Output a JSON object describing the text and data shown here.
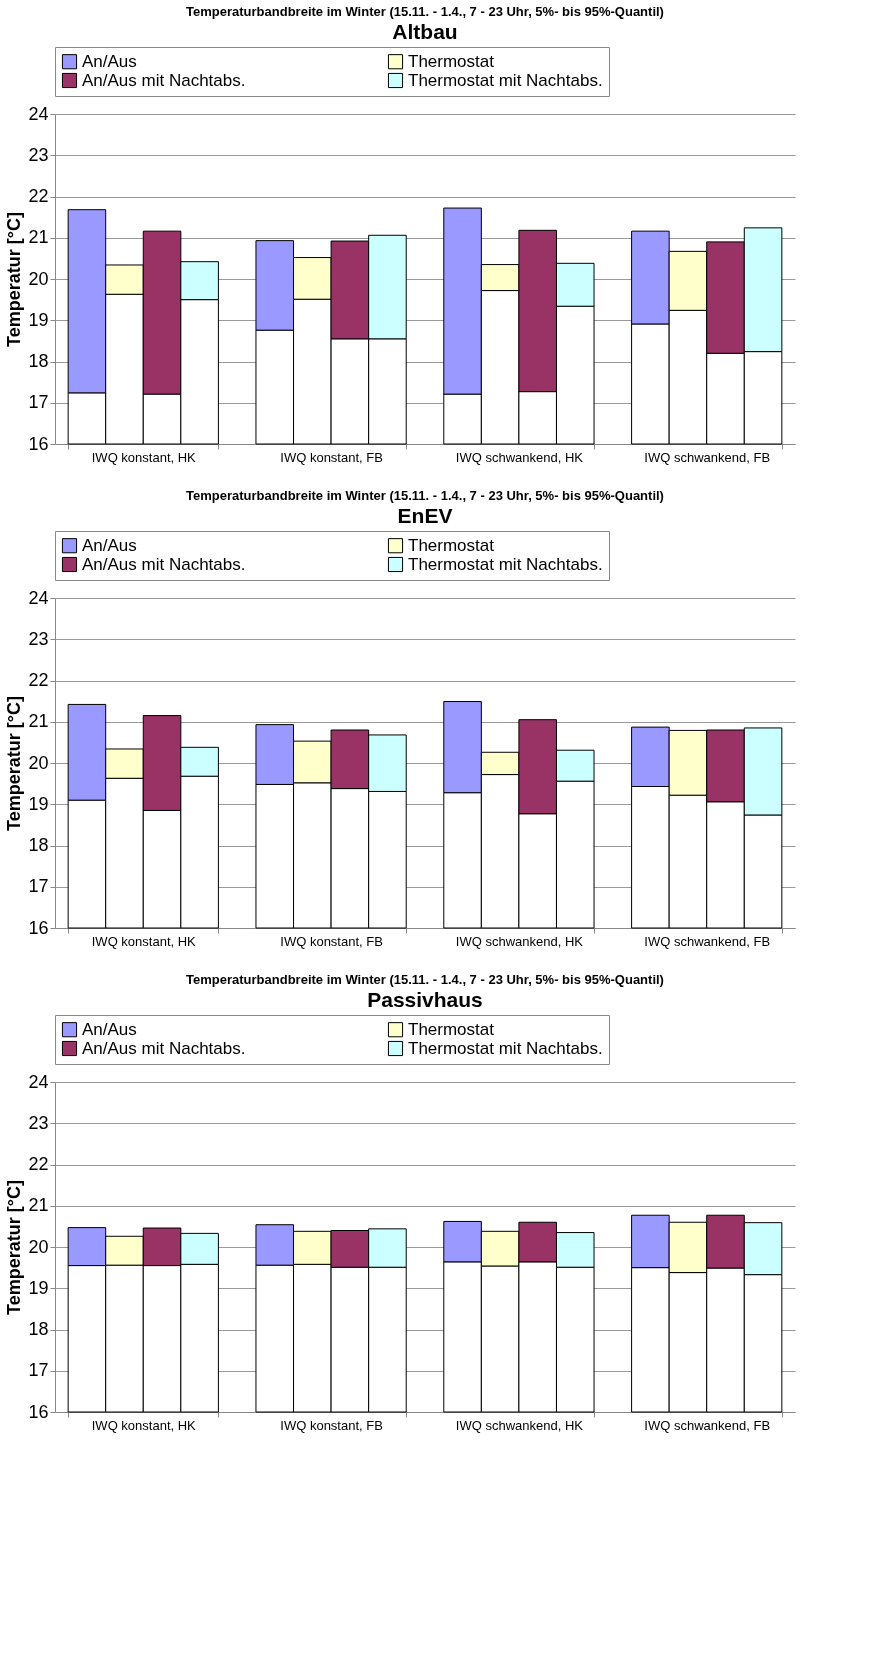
{
  "chart_data": [
    {
      "type": "bar",
      "title": "Temperaturbandbreite im Winter (15.11. - 1.4., 7 - 23 Uhr, 5%- bis 95%-Quantil)",
      "subtitle": "Altbau",
      "ylabel": "Temperatur [°C]",
      "categories": [
        "IWQ konstant, HK",
        "IWQ konstant, FB",
        "IWQ schwankend, HK",
        "IWQ schwankend, FB"
      ],
      "ylim": [
        16,
        24
      ],
      "yticks": [
        16,
        17,
        18,
        19,
        20,
        21,
        22,
        23,
        24
      ],
      "grid": "y",
      "legend": "top",
      "series": [
        {
          "color": "#ffffff",
          "base": [
            16,
            16,
            16,
            16
          ],
          "values": [
            1.24,
            2.76,
            1.21,
            2.91
          ]
        },
        {
          "name": "An/Aus",
          "color": "#9999ff",
          "base": [
            17.24,
            18.76,
            17.21,
            18.91
          ],
          "values": [
            4.44,
            2.17,
            4.51,
            2.25
          ]
        },
        {
          "color": "#ffffff",
          "base": [
            16,
            16,
            16,
            16
          ],
          "values": [
            3.63,
            3.51,
            3.72,
            3.24
          ]
        },
        {
          "name": "Thermostat",
          "color": "#ffffcc",
          "base": [
            19.63,
            19.51,
            19.72,
            19.24
          ],
          "values": [
            0.71,
            1.01,
            0.63,
            1.43
          ]
        },
        {
          "color": "#ffffff",
          "base": [
            16,
            16,
            16,
            16
          ],
          "values": [
            1.21,
            2.55,
            1.27,
            2.2
          ]
        },
        {
          "name": "An/Aus mit Nachtabs.",
          "color": "#993366",
          "base": [
            17.21,
            18.55,
            17.27,
            18.2
          ],
          "values": [
            3.95,
            2.37,
            3.91,
            2.7
          ]
        },
        {
          "color": "#ffffff",
          "base": [
            16,
            16,
            16,
            16
          ],
          "values": [
            3.5,
            2.55,
            3.34,
            2.24
          ]
        },
        {
          "name": "Thermostat mit Nachtabs.",
          "color": "#ccffff",
          "base": [
            19.5,
            18.55,
            19.34,
            18.24
          ],
          "values": [
            0.92,
            2.51,
            1.04,
            3.0
          ]
        }
      ]
    },
    {
      "type": "bar",
      "title": "Temperaturbandbreite im Winter (15.11. - 1.4., 7 - 23 Uhr, 5%- bis 95%-Quantil)",
      "subtitle": "EnEV",
      "ylabel": "Temperatur [°C]",
      "categories": [
        "IWQ konstant, HK",
        "IWQ konstant, FB",
        "IWQ schwankend, HK",
        "IWQ schwankend, FB"
      ],
      "ylim": [
        16,
        24
      ],
      "yticks": [
        16,
        17,
        18,
        19,
        20,
        21,
        22,
        23,
        24
      ],
      "grid": "y",
      "legend": "top",
      "series": [
        {
          "color": "#ffffff",
          "base": [
            16,
            16,
            16,
            16
          ],
          "values": [
            3.1,
            3.48,
            3.28,
            3.43
          ]
        },
        {
          "name": "An/Aus",
          "color": "#9999ff",
          "base": [
            19.1,
            19.48,
            19.28,
            19.43
          ],
          "values": [
            2.32,
            1.45,
            2.21,
            1.44
          ]
        },
        {
          "color": "#ffffff",
          "base": [
            16,
            16,
            16,
            16
          ],
          "values": [
            3.63,
            3.52,
            3.72,
            3.22
          ]
        },
        {
          "name": "Thermostat",
          "color": "#ffffcc",
          "base": [
            19.63,
            19.52,
            19.72,
            19.22
          ],
          "values": [
            0.71,
            1.01,
            0.54,
            1.57
          ]
        },
        {
          "color": "#ffffff",
          "base": [
            16,
            16,
            16,
            16
          ],
          "values": [
            2.85,
            3.38,
            2.77,
            3.06
          ]
        },
        {
          "name": "An/Aus mit Nachtabs.",
          "color": "#993366",
          "base": [
            18.85,
            19.38,
            18.77,
            19.06
          ],
          "values": [
            2.3,
            1.42,
            2.28,
            1.74
          ]
        },
        {
          "color": "#ffffff",
          "base": [
            16,
            16,
            16,
            16
          ],
          "values": [
            3.68,
            3.31,
            3.56,
            2.74
          ]
        },
        {
          "name": "Thermostat mit Nachtabs.",
          "color": "#ccffff",
          "base": [
            19.68,
            19.31,
            19.56,
            18.74
          ],
          "values": [
            0.7,
            1.37,
            0.75,
            2.11
          ]
        }
      ]
    },
    {
      "type": "bar",
      "title": "Temperaturbandbreite im Winter (15.11. - 1.4., 7 - 23 Uhr, 5%- bis 95%-Quantil)",
      "subtitle": "Passivhaus",
      "ylabel": "Temperatur [°C]",
      "categories": [
        "IWQ konstant, HK",
        "IWQ konstant, FB",
        "IWQ schwankend, HK",
        "IWQ schwankend, FB"
      ],
      "ylim": [
        16,
        24
      ],
      "yticks": [
        16,
        17,
        18,
        19,
        20,
        21,
        22,
        23,
        24
      ],
      "grid": "y",
      "legend": "top",
      "series": [
        {
          "color": "#ffffff",
          "base": [
            16,
            16,
            16,
            16
          ],
          "values": [
            3.55,
            3.56,
            3.64,
            3.5
          ]
        },
        {
          "name": "An/Aus",
          "color": "#9999ff",
          "base": [
            19.55,
            19.56,
            19.64,
            19.5
          ],
          "values": [
            0.92,
            0.98,
            0.98,
            1.27
          ]
        },
        {
          "color": "#ffffff",
          "base": [
            16,
            16,
            16,
            16
          ],
          "values": [
            3.56,
            3.58,
            3.54,
            3.38
          ]
        },
        {
          "name": "Thermostat",
          "color": "#ffffcc",
          "base": [
            19.56,
            19.58,
            19.54,
            19.38
          ],
          "values": [
            0.7,
            0.8,
            0.84,
            1.22
          ]
        },
        {
          "color": "#ffffff",
          "base": [
            16,
            16,
            16,
            16
          ],
          "values": [
            3.55,
            3.51,
            3.64,
            3.49
          ]
        },
        {
          "name": "An/Aus mit Nachtabs.",
          "color": "#993366",
          "base": [
            19.55,
            19.51,
            19.64,
            19.49
          ],
          "values": [
            0.91,
            0.89,
            0.96,
            1.28
          ]
        },
        {
          "color": "#ffffff",
          "base": [
            16,
            16,
            16,
            16
          ],
          "values": [
            3.58,
            3.51,
            3.51,
            3.33
          ]
        },
        {
          "name": "Thermostat mit Nachtabs.",
          "color": "#ccffff",
          "base": [
            19.58,
            19.51,
            19.51,
            19.33
          ],
          "values": [
            0.75,
            0.93,
            0.84,
            1.26
          ]
        }
      ]
    }
  ]
}
